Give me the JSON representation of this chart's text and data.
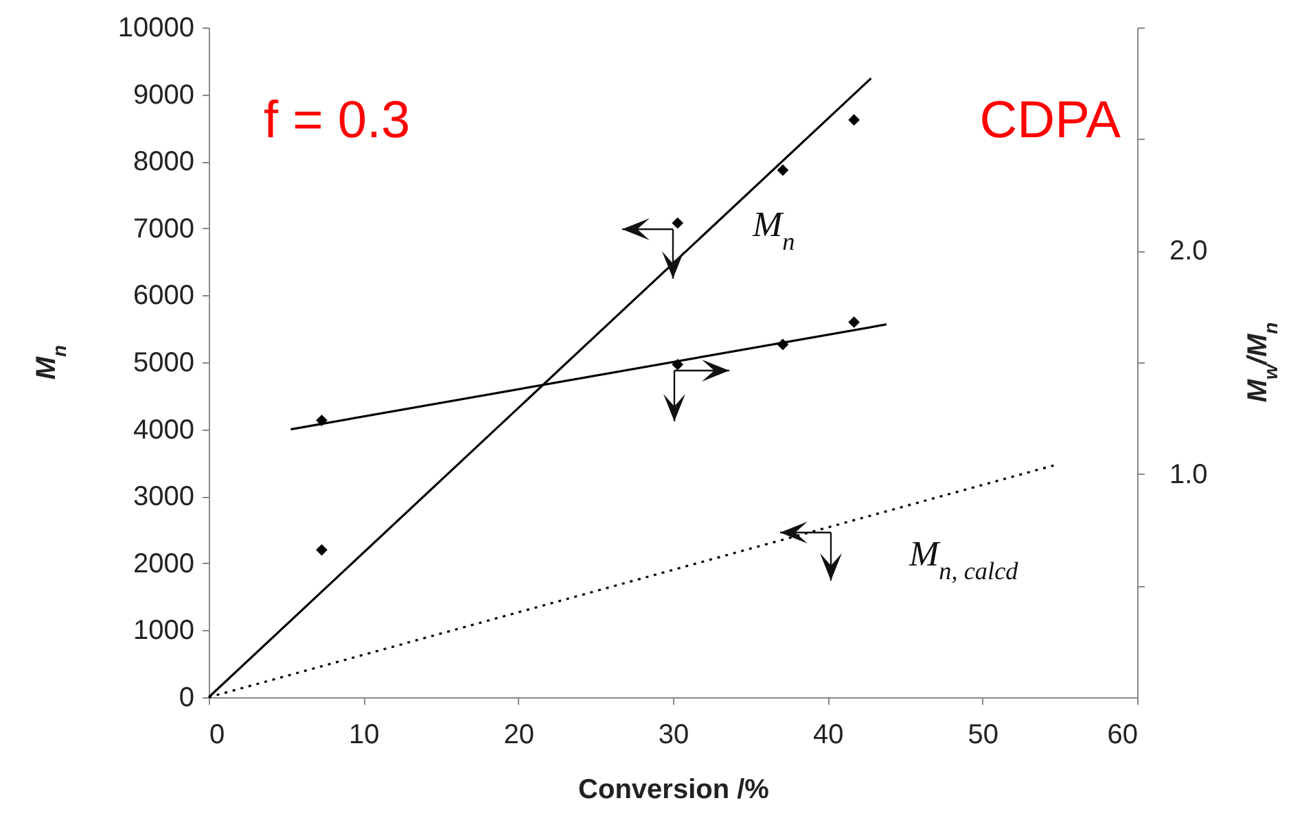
{
  "chart_data": {
    "type": "scatter",
    "xlabel": "Conversion /%",
    "ylabel": "M$_{n}$",
    "y2label": "M$_{w}$/M$_{n}$",
    "xlim": [
      0,
      60
    ],
    "xticks": [
      0,
      10,
      20,
      30,
      40,
      50,
      60
    ],
    "ylim": [
      0,
      10000
    ],
    "yticks": [
      0,
      1000,
      2000,
      3000,
      4000,
      5000,
      6000,
      7000,
      8000,
      9000,
      10000
    ],
    "y2lim": [
      0,
      3
    ],
    "y2ticks": [
      {
        "value": 0.5,
        "label": null
      },
      {
        "value": 1,
        "label": "1.0"
      },
      {
        "value": 1.5,
        "label": null
      },
      {
        "value": 2,
        "label": "2.0"
      },
      {
        "value": 2.5,
        "label": null
      },
      {
        "value": 3,
        "label": null
      }
    ],
    "grid": false,
    "series": [
      {
        "marker": "diamond",
        "color": "#000000",
        "x": [
          7.3,
          30.3,
          37.1,
          41.7
        ],
        "values": [
          2200,
          7080,
          7870,
          8620
        ]
      },
      {
        "type": "line",
        "color": "#000000",
        "x": [
          0,
          42.8
        ],
        "values": [
          0,
          9240
        ]
      },
      {
        "marker": "diamond",
        "axis": "y2",
        "color": "#000000",
        "x": [
          7.3,
          30.3,
          37.1,
          41.7
        ],
        "values": [
          1.24,
          1.49,
          1.58,
          1.68
        ]
      },
      {
        "type": "line",
        "axis": "y2",
        "color": "#000000",
        "x": [
          5.3,
          43.8
        ],
        "values": [
          1.2,
          1.67
        ]
      },
      {
        "type": "line",
        "color": "#000000",
        "line_style": "dotted",
        "x": [
          0,
          54.9
        ],
        "values": [
          0,
          3480
        ]
      }
    ],
    "annotations": [
      "f = 0.3",
      "CDPA",
      "M$_{n}$",
      "M$_{n, calcd}$"
    ]
  }
}
